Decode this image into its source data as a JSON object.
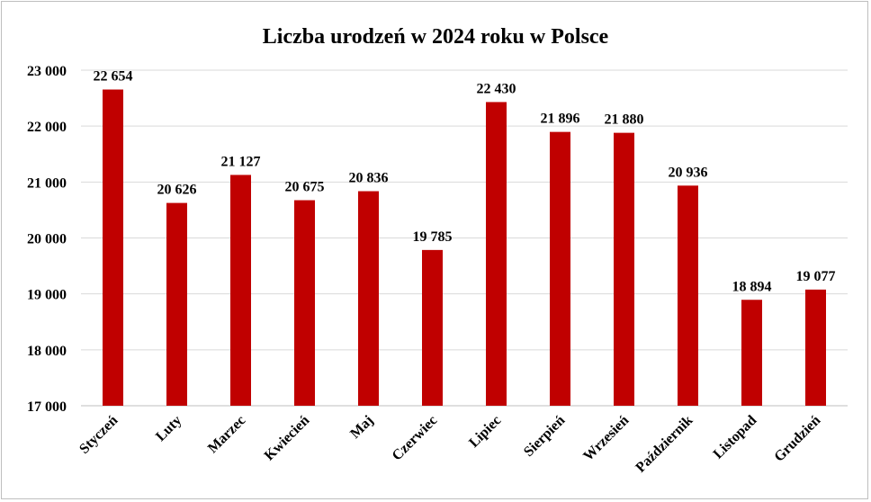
{
  "chart_data": {
    "type": "bar",
    "title": "Liczba urodzeń w 2024 roku w Polsce",
    "xlabel": "",
    "ylabel": "",
    "categories": [
      "Styczeń",
      "Luty",
      "Marzec",
      "Kwiecień",
      "Maj",
      "Czerwiec",
      "Lipiec",
      "Sierpień",
      "Wrzesień",
      "Październik",
      "Listopad",
      "Grudzień"
    ],
    "values": [
      22654,
      20626,
      21127,
      20675,
      20836,
      19785,
      22430,
      21896,
      21880,
      20936,
      18894,
      19077
    ],
    "data_labels": [
      "22 654",
      "20 626",
      "21 127",
      "20 675",
      "20 836",
      "19 785",
      "22 430",
      "21 896",
      "21 880",
      "20 936",
      "18 894",
      "19 077"
    ],
    "ylim": [
      17000,
      23000
    ],
    "yticks": [
      17000,
      18000,
      19000,
      20000,
      21000,
      22000,
      23000
    ],
    "ytick_labels": [
      "17 000",
      "18 000",
      "19 000",
      "20 000",
      "21 000",
      "22 000",
      "23 000"
    ],
    "grid": true,
    "legend": "none",
    "bar_color": "#C00000"
  }
}
